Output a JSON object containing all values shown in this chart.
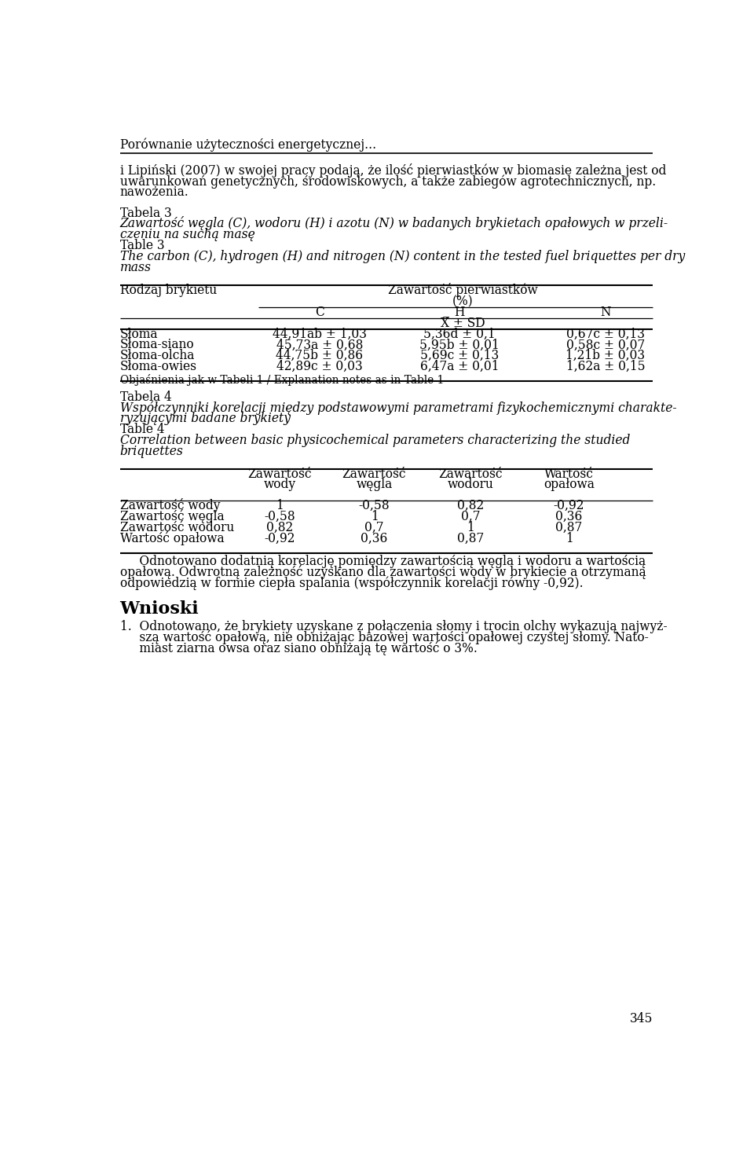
{
  "bg_color": "#ffffff",
  "header_line": "Porównanie użyteczności energetycznej...",
  "para1_lines": [
    "i Lipiński (2007) w swojej pracy podają, że ilość pierwiastków w biomasie zależna jest od",
    "uwarunkowań genetycznych, środowiskowych, a także zabiegów agrotechnicznych, np.",
    "nawożenia."
  ],
  "tabela3_label": "Tabela 3",
  "tabela3_italic_pl_lines": [
    "Zawartość węgla (C), wodoru (H) i azotu (N) w badanych brykietach opałowych w przeli-",
    "czeniu na suchą masę"
  ],
  "tabela3_label_en": "Table 3",
  "tabela3_italic_en_lines": [
    "The carbon (C), hydrogen (H) and nitrogen (N) content in the tested fuel briquettes per dry",
    "mass"
  ],
  "table3_col_header1": "Zawartość pierwiastków",
  "table3_col_header2": "(%)",
  "table3_col_c": "C",
  "table3_col_h": "H",
  "table3_col_n": "N",
  "table3_xsd": "X̅ ± SD",
  "table3_row_label": "Rodzaj brykietu",
  "table3_rows": [
    [
      "Słoma",
      "44,91ab ± 1,03",
      "5,36d ± 0,1",
      "0,67c ± 0,13"
    ],
    [
      "Słoma-siano",
      "45,73a ± 0,68",
      "5,95b ± 0,01",
      "0,58c ± 0,07"
    ],
    [
      "Słoma-olcha",
      "44,75b ± 0,86",
      "5,69c ± 0,13",
      "1,21b ± 0,03"
    ],
    [
      "Słoma-owies",
      "42,89c ± 0,03",
      "6,47a ± 0,01",
      "1,62a ± 0,15"
    ]
  ],
  "table3_footnote": "Objaśnienia jak w Tabeli 1 / Explanation notes as in Table 1",
  "tabela4_label": "Tabela 4",
  "tabela4_italic_pl_lines": [
    "Współczynniki korelacji między podstawowymi parametrami fizykochemicznymi charakte-",
    "ryzującymi badane brykiety"
  ],
  "tabela4_label_en": "Table 4",
  "tabela4_italic_en_lines": [
    "Correlation between basic physicochemical parameters characterizing the studied",
    "briquettes"
  ],
  "table4_col_header_lines": [
    [
      "Zawartość",
      "wody"
    ],
    [
      "Zawartość",
      "węgla"
    ],
    [
      "Zawartość",
      "wodoru"
    ],
    [
      "Wartość",
      "opałowa"
    ]
  ],
  "table4_row_labels": [
    "Zawartość wody",
    "Zawartość węgla",
    "Zawartość wodoru",
    "Wartość opałowa"
  ],
  "table4_data": [
    [
      "1",
      "-0,58",
      "0,82",
      "-0,92"
    ],
    [
      "-0,58",
      "1",
      "0,7",
      "0,36"
    ],
    [
      "0,82",
      "0,7",
      "1",
      "0,87"
    ],
    [
      "-0,92",
      "0,36",
      "0,87",
      "1"
    ]
  ],
  "para2_lines": [
    "     Odnotowano dodatnią korelację pomiędzy zawartością węgla i wodoru a wartością",
    "opałową. Odwrotną zależność uzyskano dla zawartości wody w brykiecie a otrzymaną",
    "odpowiedzią w formie ciepła spalania (współczynnik korelacji równy -0,92)."
  ],
  "wnioski_header": "Wnioski",
  "wnioski_item1_lines": [
    "1.  Odnotowano, że brykiety uzyskane z połączenia słomy i trocin olchy wykazują najwyż-",
    "     szą wartość opałową, nie obniżając bazowej wartości opałowej czystej słomy. Nato-",
    "     miast ziarna owsa oraz siano obniżają tę wartość o 3%."
  ],
  "page_number": "345"
}
